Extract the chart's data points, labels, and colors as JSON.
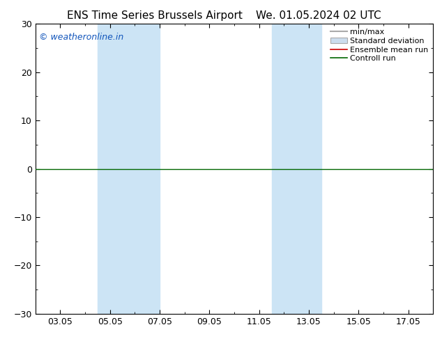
{
  "title_left": "ENS Time Series Brussels Airport",
  "title_right": "We. 01.05.2024 02 UTC",
  "ylim": [
    -30,
    30
  ],
  "yticks": [
    -30,
    -20,
    -10,
    0,
    10,
    20,
    30
  ],
  "xlim_start": 1.0,
  "xlim_end": 17.0,
  "xtick_positions": [
    2,
    4,
    6,
    8,
    10,
    12,
    14,
    16
  ],
  "xtick_labels": [
    "03.05",
    "05.05",
    "07.05",
    "09.05",
    "11.05",
    "13.05",
    "15.05",
    "17.05"
  ],
  "shade_bands": [
    {
      "xmin": 3.5,
      "xmax": 6.0
    },
    {
      "xmin": 10.5,
      "xmax": 12.5
    }
  ],
  "shade_color": "#cce4f5",
  "zero_line_color": "#006600",
  "watermark": "© weatheronline.in",
  "watermark_color": "#1155bb",
  "legend_minmax_color": "#aaaaaa",
  "legend_std_color": "#ccddee",
  "legend_std_edge": "#aaaaaa",
  "legend_ensemble_color": "#cc0000",
  "legend_control_color": "#006600",
  "bg_color": "#ffffff",
  "title_fontsize": 11,
  "tick_fontsize": 9,
  "legend_fontsize": 8,
  "watermark_fontsize": 9
}
